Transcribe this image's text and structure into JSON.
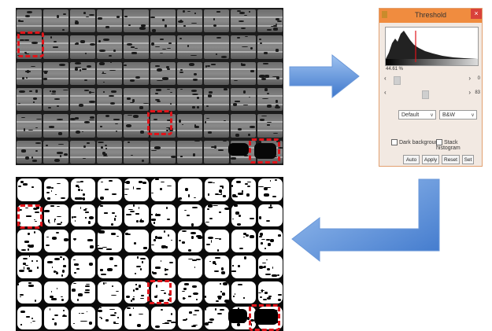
{
  "dialog": {
    "title": "Threshold",
    "close_glyph": "×",
    "threshold_percent": "44.61 %",
    "slider_min_value": "0",
    "slider_max_value": "83",
    "method_select": "Default",
    "mode_select": "B&W",
    "dark_background_label": "Dark background",
    "stack_histogram_label": "Stack histogram",
    "buttons": [
      "Auto",
      "Apply",
      "Reset",
      "Set"
    ]
  },
  "icons": {
    "left_arrow": "chevron-left-icon",
    "right_arrow": "chevron-right-icon",
    "dropdown": "chevron-down-icon"
  },
  "colors": {
    "highlight_red": "#e0141a",
    "arrow_blue": "#4a86d6",
    "dialog_title_orange": "#f08c3f"
  }
}
